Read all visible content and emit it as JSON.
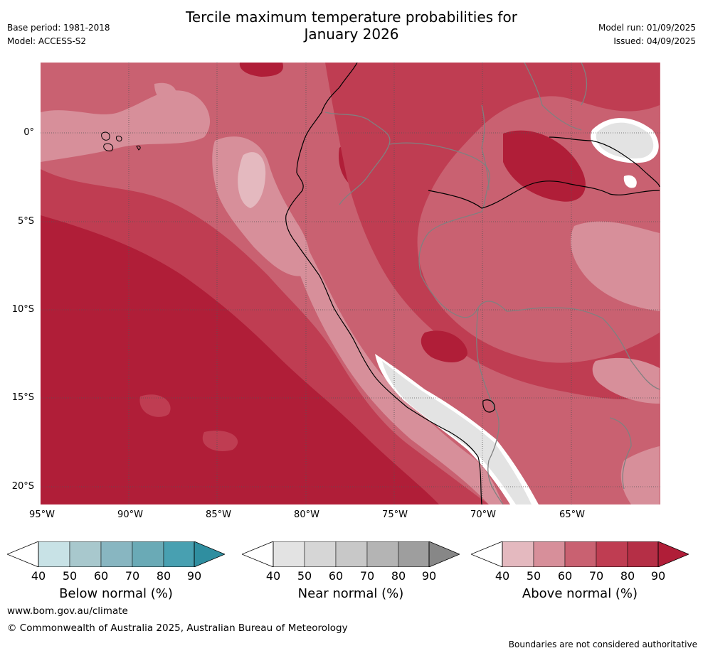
{
  "header": {
    "title_line1": "Tercile maximum temperature probabilities for",
    "title_line2": "January 2026",
    "base_period": "Base period: 1981-2018",
    "model": "Model: ACCESS-S2",
    "model_run": "Model run: 01/09/2025",
    "issued": "Issued: 04/09/2025"
  },
  "map": {
    "lat_labels": [
      "0°",
      "5°S",
      "10°S",
      "15°S",
      "20°S"
    ],
    "lon_labels": [
      "95°W",
      "90°W",
      "85°W",
      "80°W",
      "75°W",
      "70°W",
      "65°W"
    ],
    "extent": {
      "lon_min": -95,
      "lon_max": -60,
      "lat_min": -21,
      "lat_max": 4
    },
    "colors": {
      "above_90": "#b01e38",
      "above_80": "#bf3d52",
      "above_70": "#c96171",
      "above_60": "#d78f9a",
      "above_50": "#e4b9bf",
      "near_50": "#e3e3e3",
      "white": "#ffffff",
      "coast": "#000000",
      "border": "#808080"
    }
  },
  "colorbars": [
    {
      "title": "Below normal (%)",
      "ticks": [
        "40",
        "50",
        "60",
        "70",
        "80",
        "90"
      ],
      "colors": [
        "#c8e2e6",
        "#a8c8cd",
        "#88b6c1",
        "#6aaab6",
        "#48a0b1",
        "#2f8ea0"
      ]
    },
    {
      "title": "Near normal (%)",
      "ticks": [
        "40",
        "50",
        "60",
        "70",
        "80",
        "90"
      ],
      "colors": [
        "#e3e3e3",
        "#d6d6d6",
        "#c8c8c8",
        "#b4b4b4",
        "#9e9e9e",
        "#878787"
      ]
    },
    {
      "title": "Above normal (%)",
      "ticks": [
        "40",
        "50",
        "60",
        "70",
        "80",
        "90"
      ],
      "colors": [
        "#e4b9bf",
        "#d78f9a",
        "#c96171",
        "#bf3d52",
        "#b52f46",
        "#b01e38"
      ]
    }
  ],
  "footer": {
    "url": "www.bom.gov.au/climate",
    "copyright": "© Commonwealth of Australia 2025, Australian Bureau of Meteorology",
    "disclaimer": "Boundaries are not considered authoritative"
  }
}
